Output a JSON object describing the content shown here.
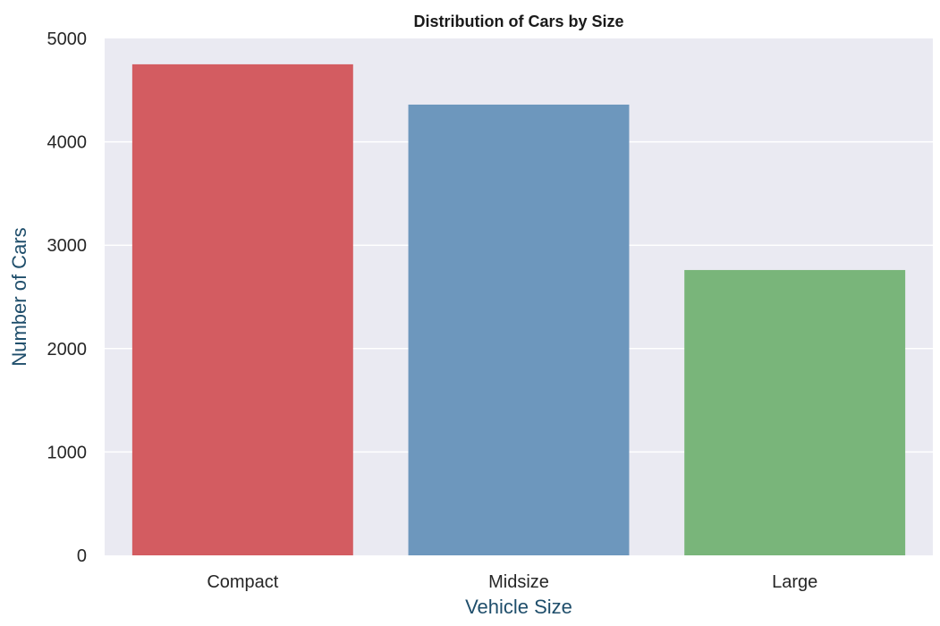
{
  "chart_data": {
    "type": "bar",
    "title": "Distribution of Cars by Size",
    "xlabel": "Vehicle Size",
    "ylabel": "Number of Cars",
    "categories": [
      "Compact",
      "Midsize",
      "Large"
    ],
    "values": [
      4750,
      4360,
      2760
    ],
    "bar_colors": [
      "#d35c61",
      "#6d97bd",
      "#79b57a"
    ],
    "ylim": [
      0,
      5000
    ],
    "yticks": [
      0,
      1000,
      2000,
      3000,
      4000,
      5000
    ],
    "grid": true,
    "colors": {
      "plot_background": "#eaeaf2",
      "grid": "#ffffff",
      "axis_title": "#1f4e6b",
      "tick_label": "#262626"
    }
  }
}
